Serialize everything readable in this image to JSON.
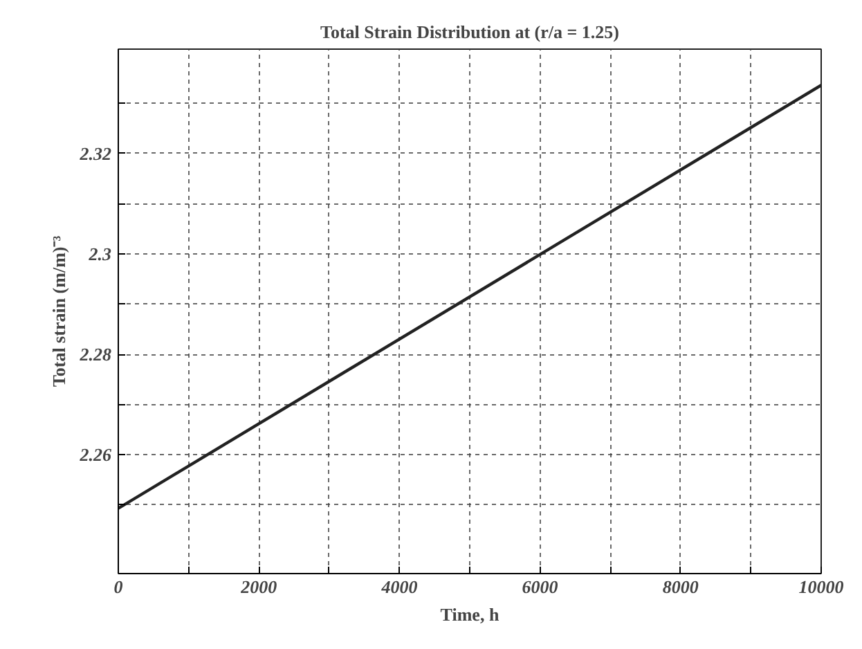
{
  "chart_data": {
    "type": "line",
    "title": "Total Strain Distribution at (r/a = 1.25)",
    "xlabel": "Time, h",
    "ylabel": "Total strain (m/m)⁻³",
    "x": [
      0,
      10000
    ],
    "series": [
      {
        "color": "#222222",
        "values": [
          2.2493,
          2.3336
        ]
      }
    ],
    "xlim": [
      0,
      10000
    ],
    "ylim": [
      2.2363,
      2.3408
    ],
    "xticks": [
      0,
      {
        "value": 1000,
        "label": null
      },
      2000,
      {
        "value": 3000,
        "label": null
      },
      4000,
      {
        "value": 5000,
        "label": null
      },
      6000,
      {
        "value": 7000,
        "label": null
      },
      8000,
      {
        "value": 9000,
        "label": null
      },
      10000
    ],
    "yticks": [
      {
        "value": 2.25,
        "label": null
      },
      2.26,
      {
        "value": 2.27,
        "label": null
      },
      2.28,
      {
        "value": 2.29,
        "label": null
      },
      {
        "value": 2.3,
        "label": "2.3"
      },
      {
        "value": 2.31,
        "label": null
      },
      2.32,
      {
        "value": 2.33,
        "label": null
      }
    ],
    "grid": true,
    "marker": "none",
    "line_style": "solid"
  }
}
